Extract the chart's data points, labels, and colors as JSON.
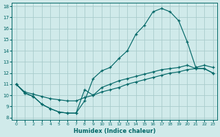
{
  "xlabel": "Humidex (Indice chaleur)",
  "xlim": [
    -0.5,
    23.5
  ],
  "ylim": [
    7.8,
    18.3
  ],
  "yticks": [
    8,
    9,
    10,
    11,
    12,
    13,
    14,
    15,
    16,
    17,
    18
  ],
  "xticks": [
    0,
    1,
    2,
    3,
    4,
    5,
    6,
    7,
    8,
    9,
    10,
    11,
    12,
    13,
    14,
    15,
    16,
    17,
    18,
    19,
    20,
    21,
    22,
    23
  ],
  "bg_color": "#d0eaea",
  "grid_color": "#a8cccc",
  "line_color": "#006666",
  "curve1_x": [
    0,
    1,
    2,
    3,
    4,
    5,
    6,
    7,
    8,
    9,
    10,
    11,
    12,
    13,
    14,
    15,
    16,
    17,
    18,
    19,
    20,
    21,
    22,
    23
  ],
  "curve1_y": [
    11.0,
    10.2,
    9.9,
    9.2,
    8.8,
    8.5,
    8.4,
    8.4,
    9.5,
    11.5,
    12.2,
    12.5,
    13.3,
    14.0,
    15.5,
    16.3,
    17.5,
    17.8,
    17.5,
    16.7,
    14.8,
    12.5,
    12.7,
    12.5
  ],
  "curve2_x": [
    0,
    1,
    2,
    3,
    4,
    5,
    6,
    7,
    8,
    9,
    10,
    11,
    12,
    13,
    14,
    15,
    16,
    17,
    18,
    19,
    20,
    21,
    22,
    23
  ],
  "curve2_y": [
    11.0,
    10.3,
    10.1,
    9.9,
    9.7,
    9.6,
    9.5,
    9.5,
    9.8,
    10.0,
    10.3,
    10.5,
    10.7,
    11.0,
    11.2,
    11.4,
    11.6,
    11.8,
    12.0,
    12.1,
    12.3,
    12.4,
    12.4,
    12.0
  ],
  "curve3_x": [
    0,
    1,
    2,
    3,
    4,
    5,
    6,
    7,
    8,
    9,
    10,
    11,
    12,
    13,
    14,
    15,
    16,
    17,
    18,
    19,
    20,
    21,
    22,
    23
  ],
  "curve3_y": [
    11.0,
    10.2,
    9.9,
    9.2,
    8.8,
    8.5,
    8.4,
    8.4,
    10.5,
    10.0,
    10.7,
    11.0,
    11.3,
    11.5,
    11.7,
    11.9,
    12.1,
    12.3,
    12.4,
    12.5,
    12.7,
    12.4,
    12.4,
    12.0
  ]
}
